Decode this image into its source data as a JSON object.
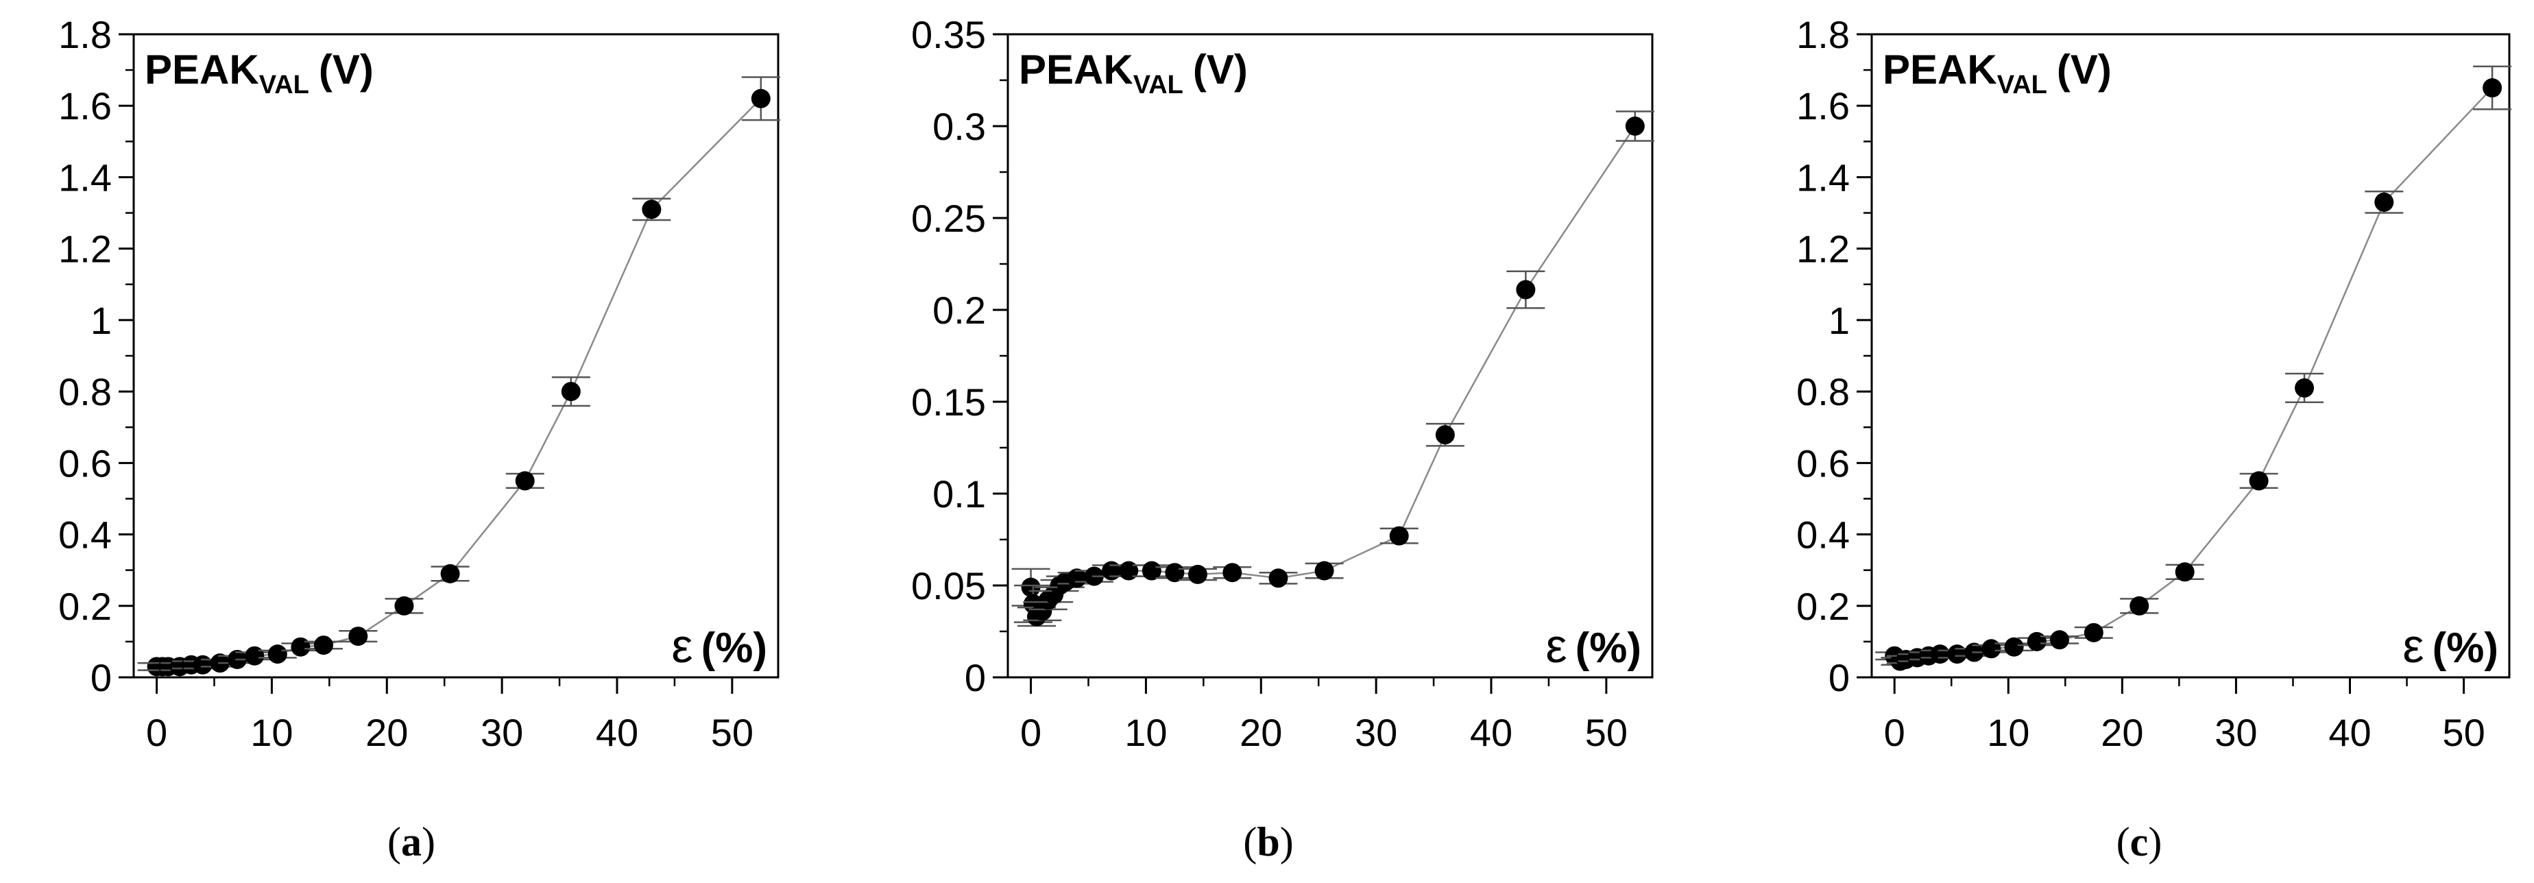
{
  "chart_data": [
    {
      "type": "line",
      "panel": "(a)",
      "panel_letter": "a",
      "ylabel_main": "PEAK",
      "ylabel_sub": "VAL",
      "ylabel_unit": "(V)",
      "xlabel_symbol": "ε",
      "xlabel_unit": "(%)",
      "xlim": [
        -2,
        54
      ],
      "ylim": [
        0,
        1.8
      ],
      "xticks": [
        0,
        10,
        20,
        30,
        40,
        50
      ],
      "xtick_labels": [
        "0",
        "10",
        "20",
        "30",
        "40",
        "50"
      ],
      "yticks": [
        0,
        0.2,
        0.4,
        0.6,
        0.8,
        1.0,
        1.2,
        1.4,
        1.6,
        1.8
      ],
      "ytick_labels": [
        "0",
        "0.2",
        "0.4",
        "0.6",
        "0.8",
        "1",
        "1.2",
        "1.4",
        "1.6",
        "1.8"
      ],
      "series": [
        {
          "name": "PEAK_VAL",
          "x": [
            0,
            0.5,
            1,
            2,
            3,
            4,
            5.5,
            7,
            8.5,
            10.5,
            12.5,
            14.5,
            17.5,
            21.5,
            25.5,
            32,
            36,
            43,
            52.5
          ],
          "y": [
            0.03,
            0.03,
            0.03,
            0.03,
            0.035,
            0.035,
            0.04,
            0.05,
            0.06,
            0.065,
            0.085,
            0.09,
            0.115,
            0.2,
            0.29,
            0.55,
            0.8,
            1.31,
            1.62
          ],
          "err": [
            0.01,
            0.01,
            0.01,
            0.01,
            0.01,
            0.01,
            0.01,
            0.01,
            0.01,
            0.01,
            0.01,
            0.01,
            0.015,
            0.02,
            0.02,
            0.02,
            0.04,
            0.03,
            0.06
          ]
        }
      ]
    },
    {
      "type": "line",
      "panel": "(b)",
      "panel_letter": "b",
      "ylabel_main": "PEAK",
      "ylabel_sub": "VAL",
      "ylabel_unit": "(V)",
      "xlabel_symbol": "ε",
      "xlabel_unit": "(%)",
      "xlim": [
        -2,
        54
      ],
      "ylim": [
        0,
        0.35
      ],
      "xticks": [
        0,
        10,
        20,
        30,
        40,
        50
      ],
      "xtick_labels": [
        "0",
        "10",
        "20",
        "30",
        "40",
        "50"
      ],
      "yticks": [
        0,
        0.05,
        0.1,
        0.15,
        0.2,
        0.25,
        0.3,
        0.35
      ],
      "ytick_labels": [
        "0",
        "0.05",
        "0.1",
        "0.15",
        "0.2",
        "0.25",
        "0.3",
        "0.35"
      ],
      "series": [
        {
          "name": "PEAK_VAL",
          "x": [
            0,
            0.2,
            0.5,
            1,
            1.5,
            2,
            2.5,
            3,
            4,
            5.5,
            7,
            8.5,
            10.5,
            12.5,
            14.5,
            17.5,
            21.5,
            25.5,
            32,
            36,
            43,
            52.5
          ],
          "y": [
            0.049,
            0.04,
            0.033,
            0.036,
            0.042,
            0.045,
            0.05,
            0.052,
            0.054,
            0.055,
            0.058,
            0.058,
            0.058,
            0.057,
            0.056,
            0.057,
            0.054,
            0.058,
            0.077,
            0.132,
            0.211,
            0.3
          ],
          "err": [
            0.01,
            0.01,
            0.005,
            0.005,
            0.005,
            0.004,
            0.003,
            0.003,
            0.003,
            0.003,
            0.003,
            0.003,
            0.003,
            0.003,
            0.003,
            0.003,
            0.003,
            0.004,
            0.004,
            0.006,
            0.01,
            0.008
          ]
        }
      ]
    },
    {
      "type": "line",
      "panel": "(c)",
      "panel_letter": "c",
      "ylabel_main": "PEAK",
      "ylabel_sub": "VAL",
      "ylabel_unit": "(V)",
      "xlabel_symbol": "ε",
      "xlabel_unit": "(%)",
      "xlim": [
        -2,
        54
      ],
      "ylim": [
        0,
        1.8
      ],
      "xticks": [
        0,
        10,
        20,
        30,
        40,
        50
      ],
      "xtick_labels": [
        "0",
        "10",
        "20",
        "30",
        "40",
        "50"
      ],
      "yticks": [
        0,
        0.2,
        0.4,
        0.6,
        0.8,
        1.0,
        1.2,
        1.4,
        1.6,
        1.8
      ],
      "ytick_labels": [
        "0",
        "0.2",
        "0.4",
        "0.6",
        "0.8",
        "1",
        "1.2",
        "1.4",
        "1.6",
        "1.8"
      ],
      "series": [
        {
          "name": "PEAK_VAL",
          "x": [
            0,
            0.5,
            1,
            2,
            3,
            4,
            5.5,
            7,
            8.5,
            10.5,
            12.5,
            14.5,
            17.5,
            21.5,
            25.5,
            32,
            36,
            43,
            52.5
          ],
          "y": [
            0.06,
            0.045,
            0.05,
            0.055,
            0.06,
            0.065,
            0.065,
            0.07,
            0.08,
            0.085,
            0.1,
            0.105,
            0.125,
            0.2,
            0.295,
            0.55,
            0.81,
            1.33,
            1.65
          ],
          "err": [
            0.01,
            0.01,
            0.01,
            0.01,
            0.01,
            0.01,
            0.01,
            0.01,
            0.01,
            0.01,
            0.01,
            0.01,
            0.015,
            0.02,
            0.02,
            0.02,
            0.04,
            0.03,
            0.06
          ]
        }
      ]
    }
  ]
}
